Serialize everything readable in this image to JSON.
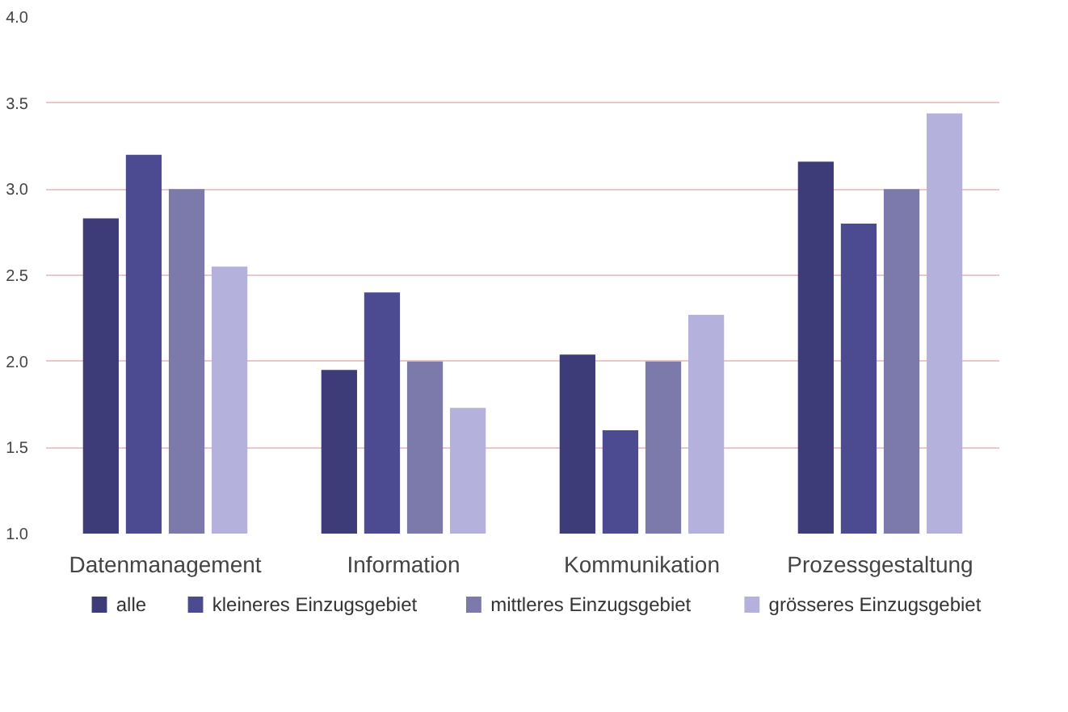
{
  "chart_data": {
    "type": "bar",
    "categories": [
      "Datenmanagement",
      "Information",
      "Kommunikation",
      "Prozessgestaltung"
    ],
    "series": [
      {
        "name": "alle",
        "color": "#3e3c78",
        "values": [
          2.83,
          1.95,
          2.04,
          3.16
        ]
      },
      {
        "name": "kleineres Einzugsgebiet",
        "color": "#4c4b92",
        "values": [
          3.2,
          2.4,
          1.6,
          2.8
        ]
      },
      {
        "name": "mittleres Einzugsgebiet",
        "color": "#7b7aab",
        "values": [
          3.0,
          2.0,
          2.0,
          3.0
        ]
      },
      {
        "name": "grösseres Einzugsgebiet",
        "color": "#b5b1dd",
        "values": [
          2.55,
          1.73,
          2.27,
          3.44
        ]
      }
    ],
    "ylim": [
      1.0,
      4.0
    ],
    "yticks": [
      {
        "value": 1.0,
        "label": "1.0"
      },
      {
        "value": 1.5,
        "label": "1.5"
      },
      {
        "value": 2.0,
        "label": "2.0"
      },
      {
        "value": 2.5,
        "label": "2.5"
      },
      {
        "value": 3.0,
        "label": "3.0"
      },
      {
        "value": 3.5,
        "label": "3.5"
      },
      {
        "value": 4.0,
        "label": "4.0"
      }
    ],
    "grid": "y",
    "legend": "bottom"
  }
}
